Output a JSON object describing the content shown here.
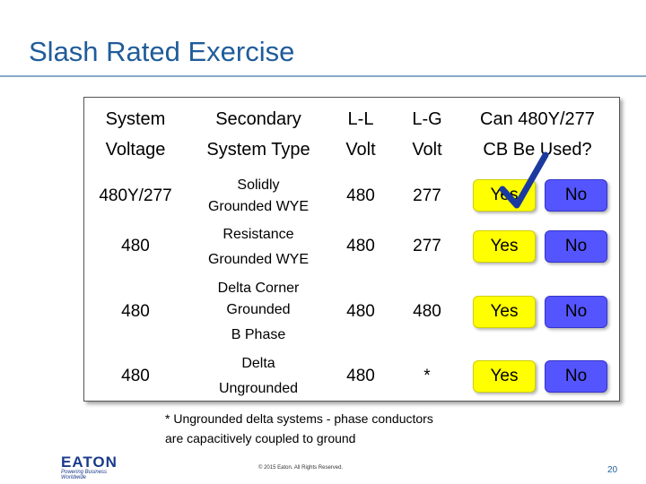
{
  "title": "Slash Rated Exercise",
  "headers": {
    "system_voltage_1": "System",
    "system_voltage_2": "Voltage",
    "secondary_1": "Secondary",
    "secondary_2": "System Type",
    "ll_1": "L-L",
    "ll_2": "Volt",
    "lg_1": "L-G",
    "lg_2": "Volt",
    "can_1": "Can 480Y/277",
    "can_2": "CB Be Used?"
  },
  "rows": [
    {
      "voltage": "480Y/277",
      "type_1": "Solidly",
      "type_2": "Grounded WYE",
      "type_3": "",
      "ll": "480",
      "lg": "277",
      "yes": "Yes",
      "no": "No"
    },
    {
      "voltage": "480",
      "type_1": "Resistance",
      "type_2": "Grounded WYE",
      "type_3": "",
      "ll": "480",
      "lg": "277",
      "yes": "Yes",
      "no": "No"
    },
    {
      "voltage": "480",
      "type_1": "Delta Corner",
      "type_2": "Grounded",
      "type_3": "B Phase",
      "ll": "480",
      "lg": "480",
      "yes": "Yes",
      "no": "No"
    },
    {
      "voltage": "480",
      "type_1": "Delta",
      "type_2": "Ungrounded",
      "type_3": "",
      "ll": "480",
      "lg": "*",
      "yes": "Yes",
      "no": "No"
    }
  ],
  "footnote_1": "* Ungrounded delta systems - phase conductors",
  "footnote_2": "are capacitively coupled to ground",
  "copyright": "© 2015 Eaton. All Rights Reserved.",
  "page_number": "20",
  "logo": {
    "word": "EATON",
    "tagline": "Powering Business Worldwide"
  },
  "colors": {
    "yes_button": "#ffff00",
    "no_button": "#5555ff",
    "title": "#1f5c9a",
    "check": "#1a3aa0"
  },
  "icons": {
    "check": "checkmark-icon"
  }
}
